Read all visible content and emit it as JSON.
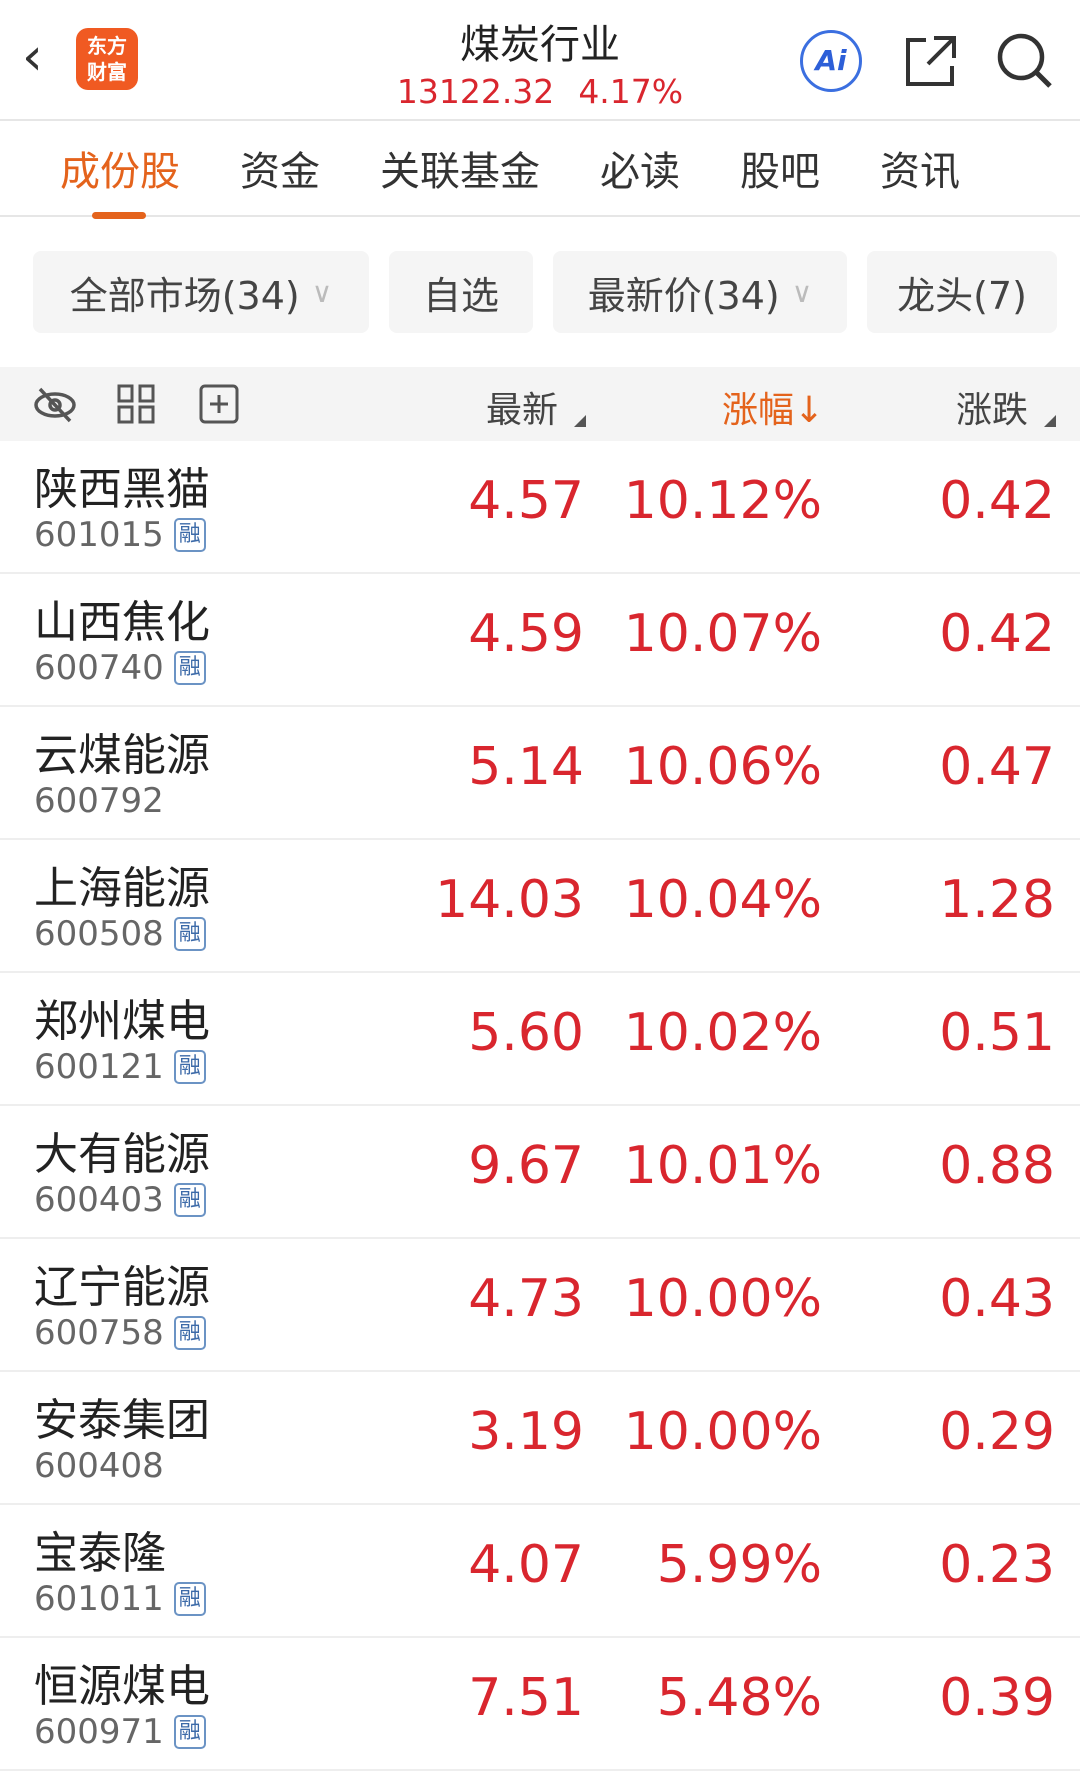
{
  "header": {
    "back_icon": "chevron-left-icon",
    "logo": "东方财富",
    "title": "煤炭行业",
    "index_value": "13122.32",
    "index_change": "4.17%",
    "ai_label": "Ai"
  },
  "tabs": [
    {
      "label": "成份股",
      "active": true
    },
    {
      "label": "资金"
    },
    {
      "label": "关联基金"
    },
    {
      "label": "必读"
    },
    {
      "label": "股吧"
    },
    {
      "label": "资讯"
    }
  ],
  "filters": {
    "market": "全部市场(34)",
    "watchlist": "自选",
    "latest": "最新价(34)",
    "leader": "龙头(7)"
  },
  "columns": {
    "latest": "最新",
    "change_pct": "涨幅↓",
    "change": "涨跌"
  },
  "badge": "融",
  "colors": {
    "up": "#d9262e",
    "accent": "#e4631c"
  },
  "rows": [
    {
      "name": "陕西黑猫",
      "code": "601015",
      "rong": true,
      "price": "4.57",
      "pct": "10.12%",
      "chg": "0.42"
    },
    {
      "name": "山西焦化",
      "code": "600740",
      "rong": true,
      "price": "4.59",
      "pct": "10.07%",
      "chg": "0.42"
    },
    {
      "name": "云煤能源",
      "code": "600792",
      "rong": false,
      "price": "5.14",
      "pct": "10.06%",
      "chg": "0.47"
    },
    {
      "name": "上海能源",
      "code": "600508",
      "rong": true,
      "price": "14.03",
      "pct": "10.04%",
      "chg": "1.28"
    },
    {
      "name": "郑州煤电",
      "code": "600121",
      "rong": true,
      "price": "5.60",
      "pct": "10.02%",
      "chg": "0.51"
    },
    {
      "name": "大有能源",
      "code": "600403",
      "rong": true,
      "price": "9.67",
      "pct": "10.01%",
      "chg": "0.88"
    },
    {
      "name": "辽宁能源",
      "code": "600758",
      "rong": true,
      "price": "4.73",
      "pct": "10.00%",
      "chg": "0.43"
    },
    {
      "name": "安泰集团",
      "code": "600408",
      "rong": false,
      "price": "3.19",
      "pct": "10.00%",
      "chg": "0.29"
    },
    {
      "name": "宝泰隆",
      "code": "601011",
      "rong": true,
      "price": "4.07",
      "pct": "5.99%",
      "chg": "0.23"
    },
    {
      "name": "恒源煤电",
      "code": "600971",
      "rong": true,
      "price": "7.51",
      "pct": "5.48%",
      "chg": "0.39"
    }
  ]
}
